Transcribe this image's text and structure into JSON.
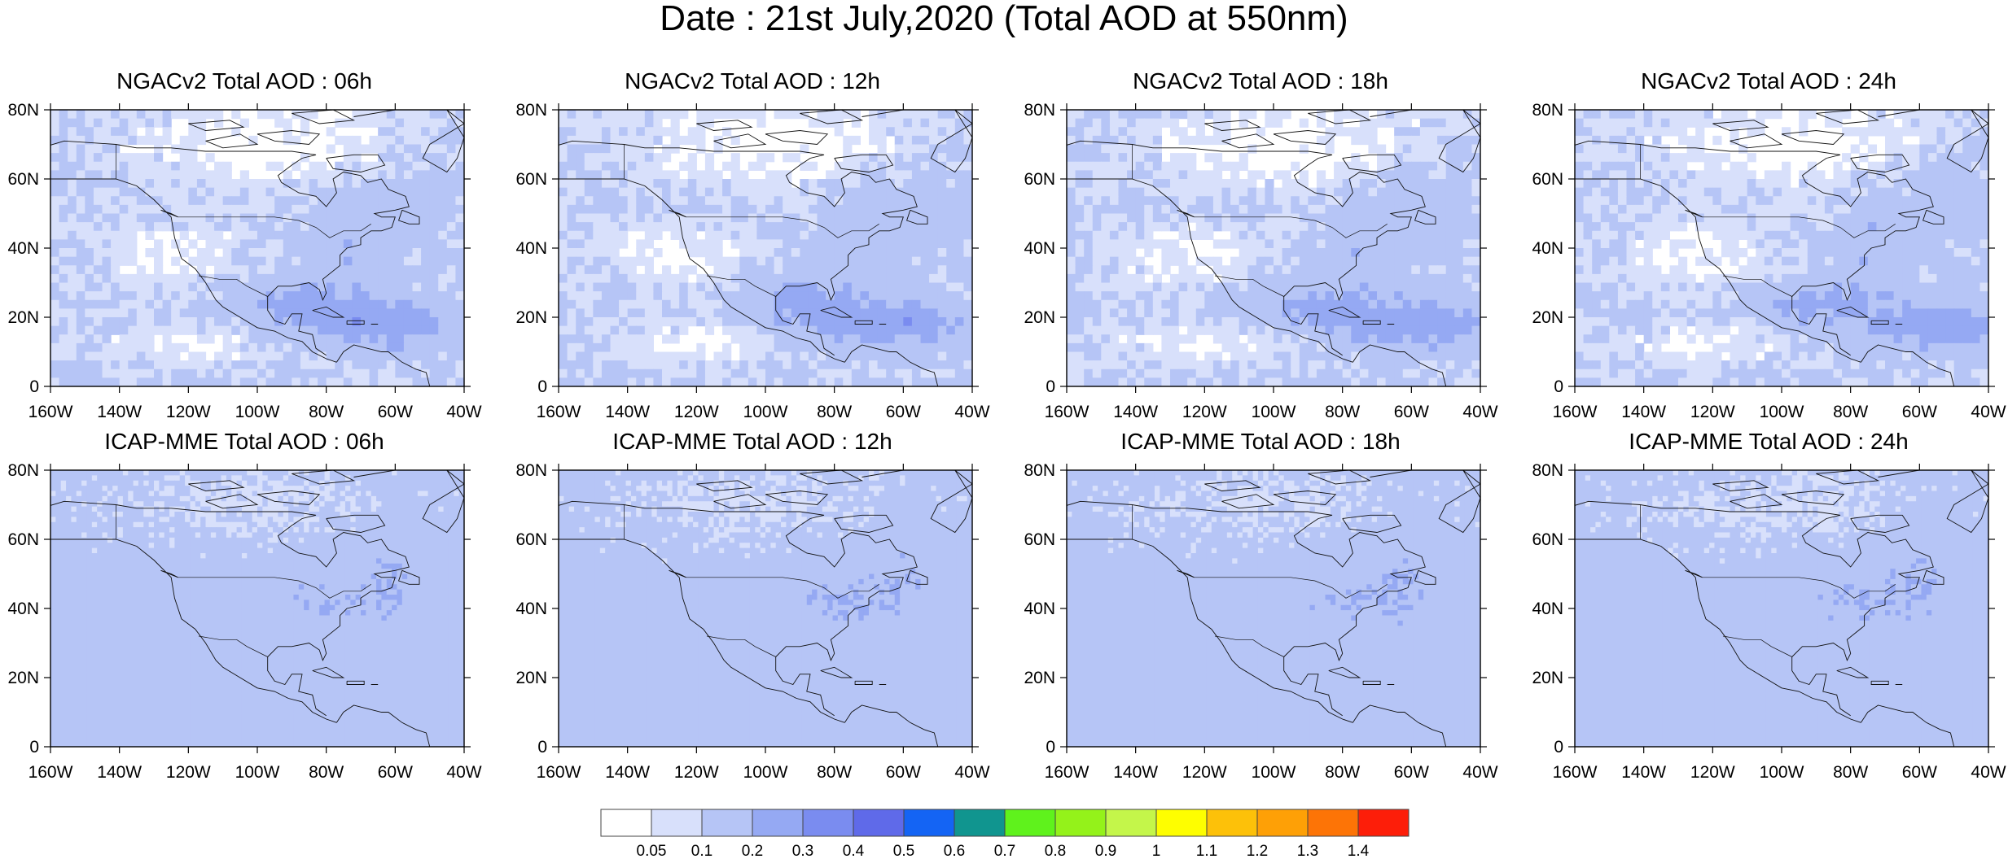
{
  "title": "Date : 21st July,2020 (Total AOD at 550nm)",
  "panels": [
    {
      "title": "NGACv2 Total AOD : 06h",
      "model": "NGACv2",
      "hour": "06h"
    },
    {
      "title": "NGACv2 Total AOD : 12h",
      "model": "NGACv2",
      "hour": "12h"
    },
    {
      "title": "NGACv2 Total AOD : 18h",
      "model": "NGACv2",
      "hour": "18h"
    },
    {
      "title": "NGACv2 Total AOD : 24h",
      "model": "NGACv2",
      "hour": "24h"
    },
    {
      "title": "ICAP-MME Total AOD : 06h",
      "model": "ICAP-MME",
      "hour": "06h"
    },
    {
      "title": "ICAP-MME Total AOD : 12h",
      "model": "ICAP-MME",
      "hour": "12h"
    },
    {
      "title": "ICAP-MME Total AOD : 18h",
      "model": "ICAP-MME",
      "hour": "18h"
    },
    {
      "title": "ICAP-MME Total AOD : 24h",
      "model": "ICAP-MME",
      "hour": "24h"
    }
  ],
  "axes": {
    "lon_ticks": [
      "160W",
      "140W",
      "120W",
      "100W",
      "80W",
      "60W",
      "40W"
    ],
    "lat_ticks": [
      "0",
      "20N",
      "40N",
      "60N",
      "80N"
    ],
    "lon_range": [
      -160,
      -40
    ],
    "lat_range": [
      0,
      80
    ]
  },
  "colorbar": {
    "labels": [
      "0.05",
      "0.1",
      "0.2",
      "0.3",
      "0.4",
      "0.5",
      "0.6",
      "0.7",
      "0.8",
      "0.9",
      "1",
      "1.1",
      "1.2",
      "1.3",
      "1.4"
    ],
    "colors": [
      "#ffffff",
      "#d8e0fb",
      "#b6c5f6",
      "#95a9f3",
      "#7a8cf0",
      "#5f6ae9",
      "#1464f4",
      "#10958f",
      "#5ff21c",
      "#94f21a",
      "#c4f64a",
      "#fefe00",
      "#fdc109",
      "#fea006",
      "#fd7406",
      "#fd1e09"
    ]
  }
}
